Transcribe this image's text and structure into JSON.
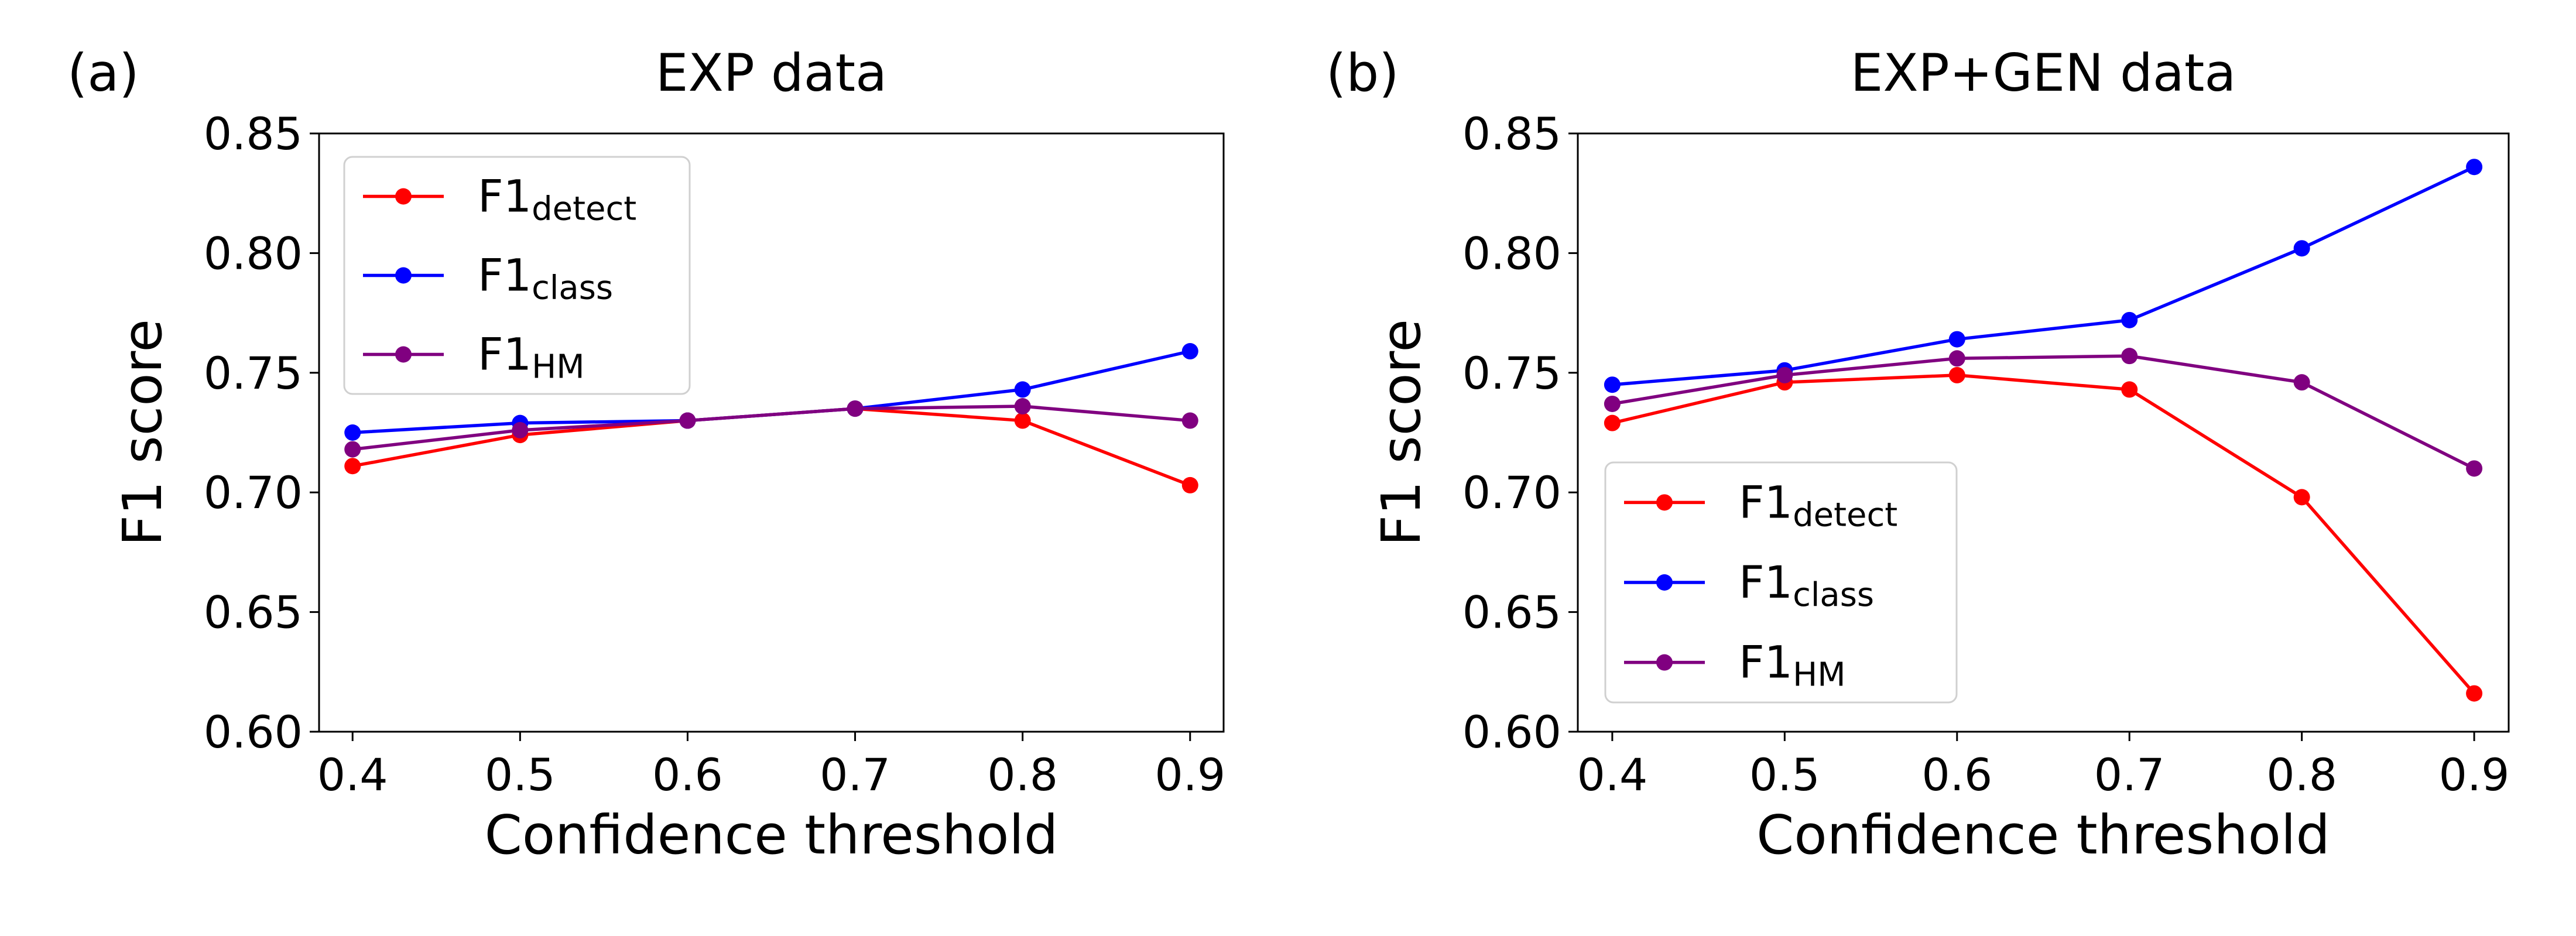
{
  "chart_data": [
    {
      "type": "line",
      "panel_label": "(a)",
      "title": "EXP data",
      "xlabel": "Confidence threshold",
      "ylabel": "F1 score",
      "x": [
        0.4,
        0.5,
        0.6,
        0.7,
        0.8,
        0.9
      ],
      "x_ticks": [
        "0.4",
        "0.5",
        "0.6",
        "0.7",
        "0.8",
        "0.9"
      ],
      "xlim": [
        0.38,
        0.92
      ],
      "ylim": [
        0.6,
        0.85
      ],
      "y_ticks": [
        "0.60",
        "0.65",
        "0.70",
        "0.75",
        "0.80",
        "0.85"
      ],
      "grid": false,
      "legend_position": "top-left",
      "series": [
        {
          "name": "F1",
          "name_sub": "detect",
          "color": "#ff0000",
          "values": [
            0.711,
            0.724,
            0.73,
            0.735,
            0.73,
            0.703
          ]
        },
        {
          "name": "F1",
          "name_sub": "class",
          "color": "#0000ff",
          "values": [
            0.725,
            0.729,
            0.73,
            0.735,
            0.743,
            0.759
          ]
        },
        {
          "name": "F1",
          "name_sub": "HM",
          "color": "#800080",
          "values": [
            0.718,
            0.726,
            0.73,
            0.735,
            0.736,
            0.73
          ]
        }
      ]
    },
    {
      "type": "line",
      "panel_label": "(b)",
      "title": "EXP+GEN data",
      "xlabel": "Confidence threshold",
      "ylabel": "F1 score",
      "x": [
        0.4,
        0.5,
        0.6,
        0.7,
        0.8,
        0.9
      ],
      "x_ticks": [
        "0.4",
        "0.5",
        "0.6",
        "0.7",
        "0.8",
        "0.9"
      ],
      "xlim": [
        0.38,
        0.92
      ],
      "ylim": [
        0.6,
        0.85
      ],
      "y_ticks": [
        "0.60",
        "0.65",
        "0.70",
        "0.75",
        "0.80",
        "0.85"
      ],
      "grid": false,
      "legend_position": "bottom-left",
      "series": [
        {
          "name": "F1",
          "name_sub": "detect",
          "color": "#ff0000",
          "values": [
            0.729,
            0.746,
            0.749,
            0.743,
            0.698,
            0.616
          ]
        },
        {
          "name": "F1",
          "name_sub": "class",
          "color": "#0000ff",
          "values": [
            0.745,
            0.751,
            0.764,
            0.772,
            0.802,
            0.836
          ]
        },
        {
          "name": "F1",
          "name_sub": "HM",
          "color": "#800080",
          "values": [
            0.737,
            0.749,
            0.756,
            0.757,
            0.746,
            0.71
          ]
        }
      ]
    }
  ]
}
